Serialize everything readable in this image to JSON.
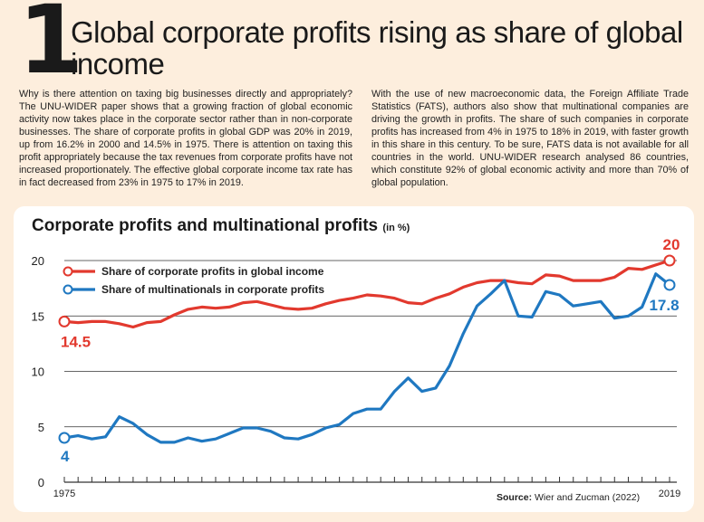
{
  "header": {
    "number": "1",
    "title": "Global corporate profits rising as share of global income"
  },
  "body": {
    "left": "Why is there attention on taxing big businesses directly and appropriately? The UNU-WIDER paper shows that a growing fraction of global economic activity now takes place in the corporate sector rather than in non-corporate businesses. The share of corporate profits in global GDP was 20% in 2019, up from 16.2% in 2000 and 14.5% in 1975. There is attention on taxing this profit appropriately because the tax revenues from corporate profits have not increased proportionately. The effective global corporate income tax rate has in fact decreased from 23% in 1975 to 17% in 2019.",
    "right": "With the use of new macroeconomic data, the Foreign Affiliate Trade Statistics (FATS), authors also show that multinational companies are driving the growth in profits. The share of such companies in corporate profits has increased from 4% in 1975 to 18% in 2019, with faster growth in this share in this century. To be sure, FATS data is not available for all countries in the world. UNU-WIDER research analysed 86 countries, which constitute 92% of global economic activity and more than 70% of global population."
  },
  "chart_data": {
    "type": "line",
    "title": "Corporate profits and multinational profits",
    "title_unit": "(in %)",
    "x": [
      1975,
      1976,
      1977,
      1978,
      1979,
      1980,
      1981,
      1982,
      1983,
      1984,
      1985,
      1986,
      1987,
      1988,
      1989,
      1990,
      1991,
      1992,
      1993,
      1994,
      1995,
      1996,
      1997,
      1998,
      1999,
      2000,
      2001,
      2002,
      2003,
      2004,
      2005,
      2006,
      2007,
      2008,
      2009,
      2010,
      2011,
      2012,
      2013,
      2014,
      2015,
      2016,
      2017,
      2018,
      2019
    ],
    "x_tick_labels": {
      "1975": "1975",
      "2019": "2019"
    },
    "ylim": [
      0,
      20
    ],
    "y_ticks": [
      0,
      5,
      10,
      15,
      20
    ],
    "series": [
      {
        "name": "Share of corporate profits in global income",
        "color": "#e2392e",
        "values": [
          14.5,
          14.4,
          14.5,
          14.5,
          14.3,
          14.0,
          14.4,
          14.5,
          15.1,
          15.6,
          15.8,
          15.7,
          15.8,
          16.2,
          16.3,
          16.0,
          15.7,
          15.6,
          15.7,
          16.1,
          16.4,
          16.6,
          16.9,
          16.8,
          16.6,
          16.2,
          16.1,
          16.6,
          17.0,
          17.6,
          18.0,
          18.2,
          18.2,
          18.0,
          17.9,
          18.7,
          18.6,
          18.2,
          18.2,
          18.2,
          18.5,
          19.3,
          19.2,
          19.6,
          20.0
        ],
        "start_label": "14.5",
        "end_label": "20"
      },
      {
        "name": "Share of multinationals in corporate profits",
        "color": "#1f78c1",
        "values": [
          4.0,
          4.2,
          3.9,
          4.1,
          5.9,
          5.3,
          4.3,
          3.6,
          3.6,
          4.0,
          3.7,
          3.9,
          4.4,
          4.9,
          4.9,
          4.6,
          4.0,
          3.9,
          4.3,
          4.9,
          5.2,
          6.2,
          6.6,
          6.6,
          8.2,
          9.4,
          8.2,
          8.5,
          10.5,
          13.4,
          15.9,
          17.0,
          18.2,
          15.0,
          14.9,
          17.2,
          16.9,
          15.9,
          16.1,
          16.3,
          14.8,
          15.0,
          15.8,
          18.8,
          17.8
        ],
        "start_label": "4",
        "end_label": "17.8"
      }
    ],
    "legend_position": "top-left",
    "source_label": "Source:",
    "source_text": "Wier and Zucman (2022)"
  }
}
